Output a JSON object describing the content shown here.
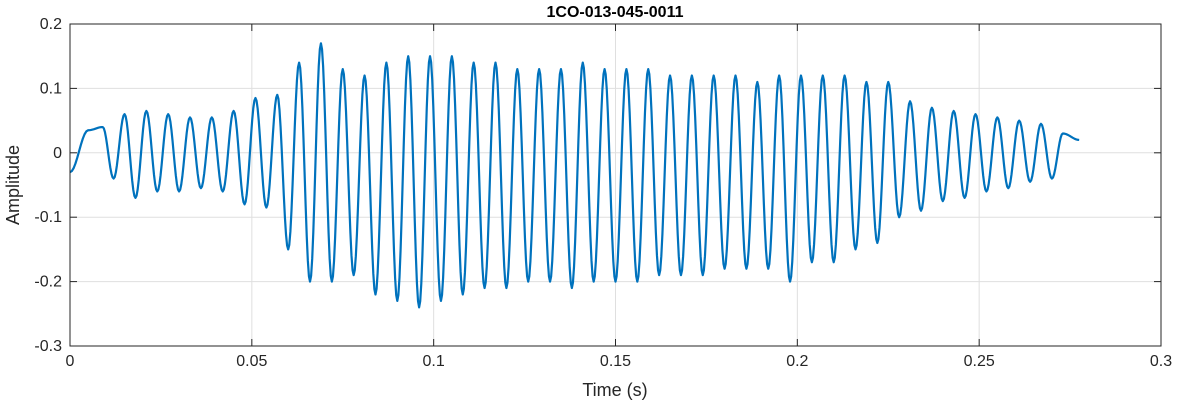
{
  "chart_data": {
    "type": "line",
    "title": "1CO-013-045-0011",
    "xlabel": "Time (s)",
    "ylabel": "Amplitude",
    "xlim": [
      0,
      0.3
    ],
    "ylim": [
      -0.3,
      0.2
    ],
    "xticks": [
      0,
      0.05,
      0.1,
      0.15,
      0.2,
      0.25,
      0.3
    ],
    "xtick_labels": [
      "0",
      "0.05",
      "0.1",
      "0.15",
      "0.2",
      "0.25",
      "0.3"
    ],
    "yticks": [
      -0.3,
      -0.2,
      -0.1,
      0,
      0.1,
      0.2
    ],
    "ytick_labels": [
      "-0.3",
      "-0.2",
      "-0.1",
      "0",
      "0.1",
      "0.2"
    ],
    "grid": true,
    "line_color": "#0072BD",
    "series": [
      {
        "x": [
          0,
          0.005,
          0.009,
          0.012,
          0.015,
          0.018,
          0.021,
          0.024,
          0.027,
          0.03,
          0.033,
          0.036,
          0.039,
          0.042,
          0.045,
          0.048,
          0.051,
          0.054,
          0.057,
          0.06,
          0.063,
          0.066,
          0.069,
          0.072,
          0.075,
          0.078,
          0.081,
          0.084,
          0.087,
          0.09,
          0.093,
          0.096,
          0.099,
          0.102,
          0.105,
          0.108,
          0.111,
          0.114,
          0.117,
          0.12,
          0.123,
          0.126,
          0.129,
          0.132,
          0.135,
          0.138,
          0.141,
          0.144,
          0.147,
          0.15,
          0.153,
          0.156,
          0.159,
          0.162,
          0.165,
          0.168,
          0.171,
          0.174,
          0.177,
          0.18,
          0.183,
          0.186,
          0.189,
          0.192,
          0.195,
          0.198,
          0.201,
          0.204,
          0.207,
          0.21,
          0.213,
          0.216,
          0.219,
          0.222,
          0.225,
          0.228,
          0.231,
          0.234,
          0.237,
          0.24,
          0.243,
          0.246,
          0.249,
          0.252,
          0.255,
          0.258,
          0.261,
          0.264,
          0.267,
          0.27,
          0.273,
          0.2775
        ],
        "y": [
          -0.03,
          0.035,
          0.04,
          -0.04,
          0.06,
          -0.07,
          0.065,
          -0.06,
          0.06,
          -0.06,
          0.055,
          -0.055,
          0.055,
          -0.06,
          0.065,
          -0.08,
          0.085,
          -0.085,
          0.09,
          -0.15,
          0.14,
          -0.2,
          0.17,
          -0.2,
          0.13,
          -0.19,
          0.12,
          -0.22,
          0.14,
          -0.23,
          0.15,
          -0.24,
          0.15,
          -0.23,
          0.15,
          -0.22,
          0.14,
          -0.21,
          0.14,
          -0.21,
          0.13,
          -0.2,
          0.13,
          -0.2,
          0.13,
          -0.21,
          0.14,
          -0.2,
          0.13,
          -0.2,
          0.13,
          -0.2,
          0.13,
          -0.19,
          0.12,
          -0.19,
          0.12,
          -0.19,
          0.12,
          -0.18,
          0.12,
          -0.18,
          0.11,
          -0.18,
          0.12,
          -0.2,
          0.12,
          -0.17,
          0.12,
          -0.17,
          0.12,
          -0.15,
          0.11,
          -0.14,
          0.11,
          -0.1,
          0.08,
          -0.09,
          0.07,
          -0.075,
          0.065,
          -0.07,
          0.06,
          -0.06,
          0.055,
          -0.055,
          0.05,
          -0.045,
          0.045,
          -0.04,
          0.03,
          0.02
        ]
      }
    ]
  }
}
